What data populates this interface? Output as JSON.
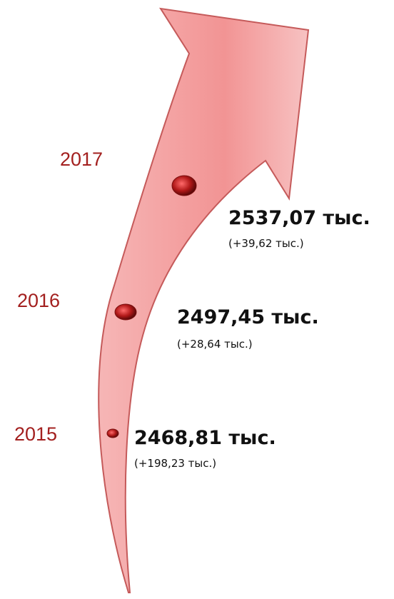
{
  "items": [
    {
      "year": "2017",
      "value": "2537,07 тыс.",
      "change": "(+39,62 тыс.)"
    },
    {
      "year": "2016",
      "value": "2497,45 тыс.",
      "change": "(+28,64 тыс.)"
    },
    {
      "year": "2015",
      "value": "2468,81 тыс.",
      "change": "(+198,23 тыс.)"
    }
  ]
}
